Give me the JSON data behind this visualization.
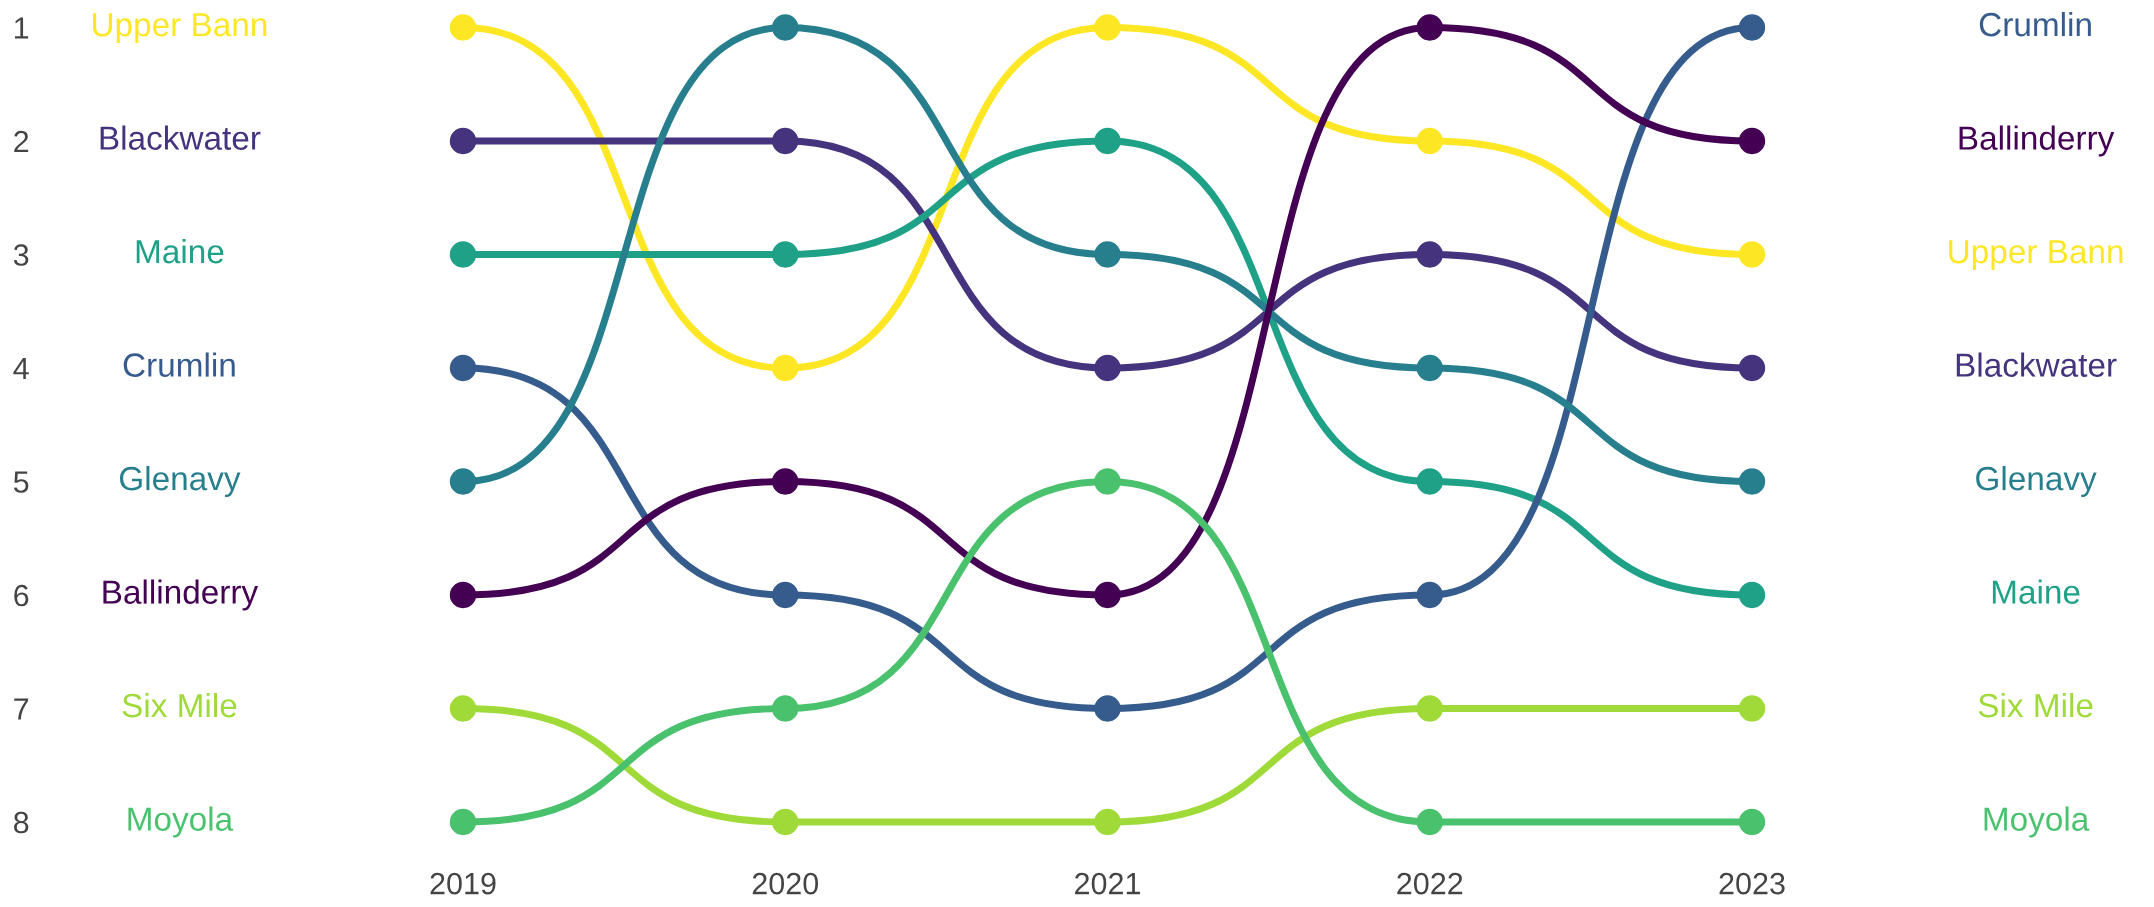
{
  "chart_data": {
    "type": "line",
    "categories": [
      "2019",
      "2020",
      "2021",
      "2022",
      "2023"
    ],
    "ylim": [
      8,
      1
    ],
    "yticks": [
      1,
      2,
      3,
      4,
      5,
      6,
      7,
      8
    ],
    "marker": "circle",
    "line_style": "solid",
    "grid": false,
    "legend": false,
    "series": [
      {
        "name": "Upper Bann",
        "color": "#fde725",
        "values": [
          1,
          4,
          1,
          2,
          3
        ]
      },
      {
        "name": "Blackwater",
        "color": "#46337e",
        "values": [
          2,
          2,
          4,
          3,
          4
        ]
      },
      {
        "name": "Maine",
        "color": "#1fa187",
        "values": [
          3,
          3,
          2,
          5,
          6
        ]
      },
      {
        "name": "Crumlin",
        "color": "#365c8d",
        "values": [
          4,
          6,
          7,
          6,
          1
        ]
      },
      {
        "name": "Glenavy",
        "color": "#277f8e",
        "values": [
          5,
          1,
          3,
          4,
          5
        ]
      },
      {
        "name": "Ballinderry",
        "color": "#440154",
        "values": [
          6,
          5,
          6,
          1,
          2
        ]
      },
      {
        "name": "Six Mile",
        "color": "#a0da39",
        "values": [
          7,
          8,
          8,
          7,
          7
        ]
      },
      {
        "name": "Moyola",
        "color": "#4ac16d",
        "values": [
          8,
          7,
          5,
          8,
          8
        ]
      }
    ]
  }
}
